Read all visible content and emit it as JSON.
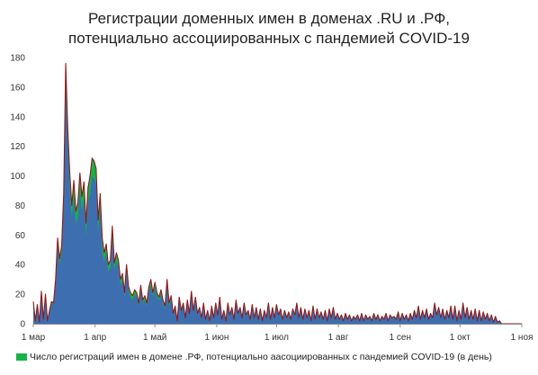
{
  "title_lines": [
    "Регистрации доменных имен в доменах .RU и .РФ,",
    "потенциально ассоциированных с пандемией COVID-19"
  ],
  "legend": {
    "label": "Число регистраций имен в домене .РФ, потенциально аасоциированных с пандемией COVID-19 (в день)",
    "color": "#17b34a"
  },
  "colors": {
    "ru_area": "#3d6fb0",
    "rf_area": "#17b34a",
    "outline": "#8b1a1a",
    "axis": "#8c8c8c"
  },
  "chart_data": {
    "type": "area",
    "stacked": true,
    "title": "Регистрации доменных имен в доменах .RU и .РФ, потенциально ассоциированных с пандемией COVID-19",
    "xlabel": "",
    "ylabel": "",
    "ylim": [
      0,
      180
    ],
    "yticks": [
      "0",
      "20",
      "40",
      "60",
      "80",
      "100",
      "120",
      "140",
      "160",
      "180"
    ],
    "xticks": [
      "1 мар",
      "1 апр",
      "1 май",
      "1 июн",
      "1 июл",
      "1 авг",
      "1 сен",
      "1 окт",
      "1 ноя"
    ],
    "grid": false,
    "legend_position": "bottom",
    "x_start": "2020-03-01",
    "x_end": "2020-11-01",
    "series": [
      {
        "name": "",
        "values": [
          14,
          2,
          12,
          1,
          20,
          3,
          18,
          2,
          8,
          14,
          13,
          28,
          52,
          40,
          48,
          80,
          158,
          120,
          90,
          72,
          85,
          68,
          72,
          90,
          76,
          85,
          60,
          82,
          88,
          100,
          98,
          95,
          62,
          78,
          50,
          42,
          48,
          35,
          38,
          58,
          36,
          42,
          38,
          26,
          30,
          18,
          35,
          22,
          18,
          16,
          20,
          18,
          12,
          22,
          14,
          16,
          12,
          22,
          26,
          18,
          24,
          18,
          16,
          20,
          14,
          10,
          26,
          12,
          16,
          6,
          10,
          2,
          16,
          8,
          12,
          4,
          14,
          6,
          20,
          8,
          16,
          6,
          10,
          4,
          12,
          3,
          8,
          2,
          10,
          4,
          12,
          5,
          16,
          3,
          8,
          2,
          12,
          5,
          10,
          3,
          14,
          6,
          10,
          4,
          12,
          5,
          8,
          3,
          11,
          4,
          10,
          3,
          9,
          2,
          8,
          4,
          12,
          3,
          10,
          4,
          11,
          5,
          9,
          3,
          8,
          4,
          7,
          3,
          9,
          5,
          12,
          4,
          10,
          3,
          9,
          4,
          8,
          2,
          10,
          3,
          9,
          4,
          7,
          3,
          8,
          2,
          9,
          4,
          10,
          3,
          6,
          3,
          5,
          2,
          6,
          3,
          5,
          2,
          4,
          3,
          5,
          2,
          6,
          2,
          5,
          3,
          4,
          2,
          6,
          3,
          5,
          2,
          4,
          3,
          6,
          2,
          5,
          4,
          4,
          3,
          7,
          2,
          6,
          3,
          5,
          2,
          6,
          3,
          8,
          4,
          10,
          3,
          8,
          4,
          9,
          3,
          6,
          4,
          12,
          5,
          10,
          4,
          9,
          3,
          8,
          4,
          10,
          3,
          11,
          2,
          8,
          3,
          12,
          4,
          10,
          3,
          8,
          3,
          9,
          2,
          8,
          2,
          7,
          3,
          6,
          2,
          5,
          1,
          4,
          1,
          2,
          0,
          0,
          0,
          0,
          0,
          0,
          0,
          0,
          0,
          0,
          0
        ]
      },
      {
        "name": "Число регистраций имен в домене .РФ, потенциально аасоциированных с пандемией COVID-19 (в день)",
        "values": [
          1,
          0,
          1,
          0,
          2,
          0,
          2,
          0,
          1,
          1,
          1,
          2,
          6,
          4,
          5,
          8,
          18,
          12,
          12,
          8,
          12,
          8,
          10,
          12,
          10,
          11,
          8,
          10,
          12,
          12,
          12,
          10,
          8,
          10,
          8,
          6,
          6,
          5,
          5,
          8,
          5,
          6,
          5,
          4,
          4,
          3,
          5,
          3,
          3,
          3,
          3,
          3,
          2,
          4,
          2,
          3,
          2,
          3,
          4,
          3,
          4,
          3,
          2,
          3,
          2,
          2,
          4,
          2,
          3,
          1,
          2,
          0,
          2,
          1,
          2,
          0,
          2,
          1,
          2,
          1,
          2,
          1,
          1,
          0,
          2,
          0,
          1,
          0,
          2,
          0,
          2,
          1,
          2,
          0,
          1,
          0,
          2,
          1,
          1,
          0,
          2,
          1,
          1,
          0,
          2,
          1,
          1,
          0,
          2,
          0,
          1,
          0,
          1,
          0,
          1,
          0,
          2,
          0,
          1,
          0,
          2,
          1,
          1,
          0,
          1,
          0,
          1,
          0,
          1,
          1,
          2,
          0,
          1,
          0,
          1,
          0,
          1,
          0,
          2,
          0,
          1,
          0,
          1,
          0,
          1,
          0,
          1,
          0,
          1,
          0,
          1,
          0,
          1,
          0,
          1,
          0,
          1,
          0,
          1,
          0,
          1,
          0,
          1,
          0,
          1,
          0,
          1,
          0,
          1,
          0,
          1,
          0,
          1,
          0,
          1,
          0,
          1,
          0,
          1,
          0,
          1,
          0,
          1,
          0,
          1,
          0,
          1,
          0,
          1,
          0,
          2,
          0,
          1,
          0,
          1,
          0,
          1,
          0,
          2,
          1,
          1,
          0,
          1,
          0,
          1,
          0,
          2,
          0,
          1,
          0,
          1,
          0,
          2,
          0,
          1,
          0,
          1,
          0,
          1,
          0,
          1,
          0,
          1,
          0,
          1,
          0,
          1,
          0,
          1,
          0,
          0,
          0,
          0,
          0,
          0,
          0,
          0,
          0,
          0,
          0,
          0,
          0,
          0,
          0,
          0
        ]
      }
    ]
  }
}
